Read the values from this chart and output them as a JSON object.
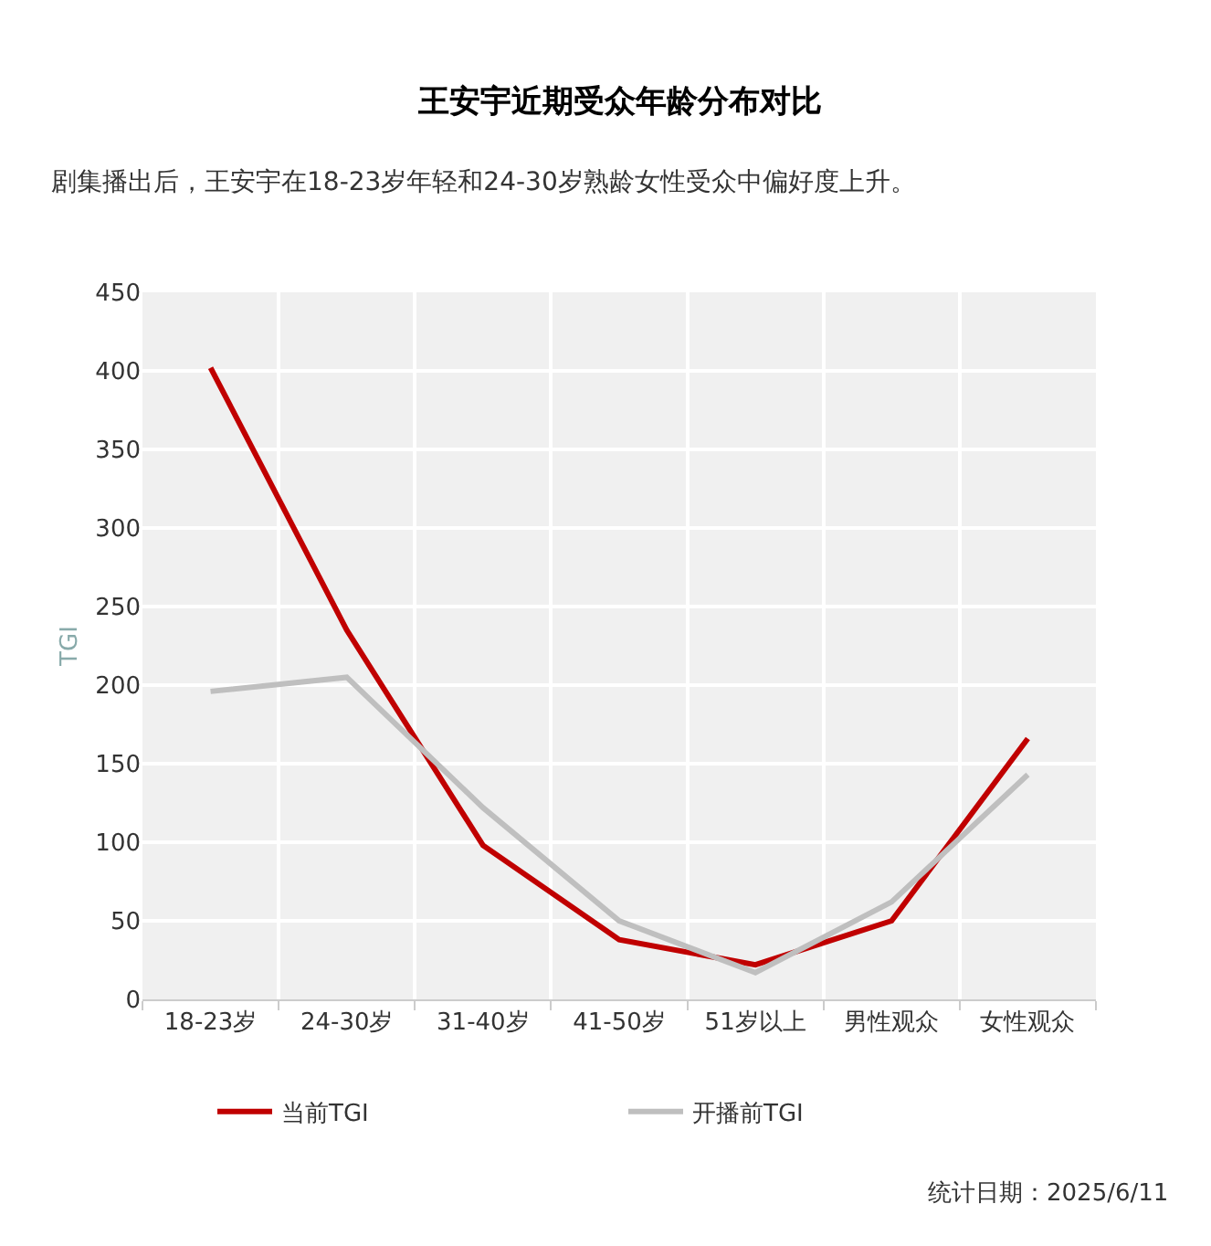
{
  "chart_data": {
    "type": "line",
    "title": "王安宇近期受众年龄分布对比",
    "subtitle": "剧集播出后，王安宇在18-23岁年轻和24-30岁熟龄女性受众中偏好度上升。",
    "ylabel": "TGI",
    "categories": [
      "18-23岁",
      "24-30岁",
      "31-40岁",
      "41-50岁",
      "51岁以上",
      "男性观众",
      "女性观众"
    ],
    "series": [
      {
        "name": "当前TGI",
        "color": "#c00000",
        "values": [
          402,
          235,
          98,
          38,
          22,
          50,
          166
        ]
      },
      {
        "name": "开播前TGI",
        "color": "#bfbfbf",
        "values": [
          196,
          205,
          122,
          50,
          17,
          62,
          143
        ]
      }
    ],
    "ylim": [
      0,
      450
    ],
    "yticks": [
      0,
      50,
      100,
      150,
      200,
      250,
      300,
      350,
      400,
      450
    ],
    "grid": true,
    "legend": "bottom",
    "marker": "none",
    "line_style": "solid",
    "annotations": [
      "统计日期：2025/6/11"
    ]
  }
}
